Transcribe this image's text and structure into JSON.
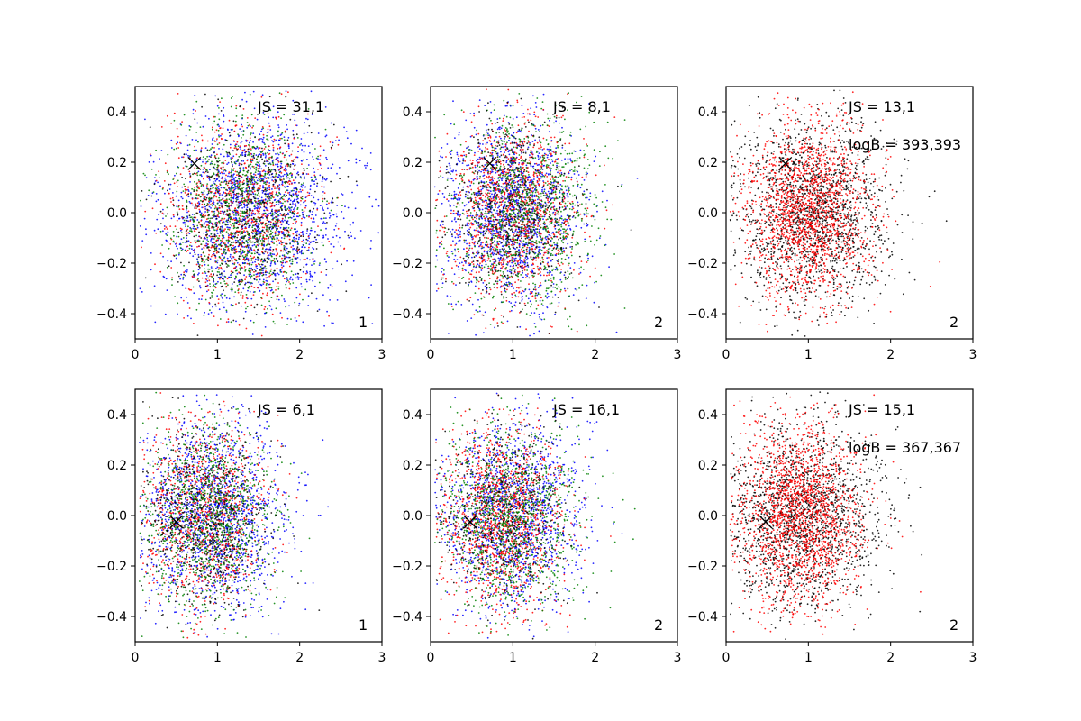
{
  "figure": {
    "background": "#ffffff",
    "layout": "2 rows x 3 columns of scatter panels"
  },
  "chart_data": [
    {
      "type": "scatter",
      "row": 0,
      "col": 0,
      "xlim": [
        0,
        3
      ],
      "ylim": [
        -0.5,
        0.5
      ],
      "xticks": [
        "0",
        "1",
        "2",
        "3"
      ],
      "yticks": [
        "0.4",
        "0.2",
        "0.0",
        "−0.2",
        "−0.4"
      ],
      "annotations": [
        "JS = 31,1"
      ],
      "corner_label": "1",
      "marker_x": {
        "x": 0.72,
        "y": 0.195,
        "color": "#000000"
      },
      "series": [
        {
          "color": "#0000ff",
          "n": 1700,
          "center": [
            1.45,
            0.0
          ],
          "spread": [
            0.55,
            0.19
          ]
        },
        {
          "color": "#ff0000",
          "n": 1000,
          "center": [
            1.3,
            0.0
          ],
          "spread": [
            0.45,
            0.18
          ]
        },
        {
          "color": "#008000",
          "n": 1000,
          "center": [
            1.3,
            0.0
          ],
          "spread": [
            0.42,
            0.18
          ]
        },
        {
          "color": "#000000",
          "n": 500,
          "center": [
            1.35,
            0.0
          ],
          "spread": [
            0.45,
            0.18
          ]
        }
      ]
    },
    {
      "type": "scatter",
      "row": 0,
      "col": 1,
      "xlim": [
        0,
        3
      ],
      "ylim": [
        -0.5,
        0.5
      ],
      "xticks": [
        "0",
        "1",
        "2",
        "3"
      ],
      "yticks": [
        "0.4",
        "0.2",
        "0.0",
        "−0.2",
        "−0.4"
      ],
      "annotations": [
        "JS = 8,1"
      ],
      "corner_label": "2",
      "marker_x": {
        "x": 0.72,
        "y": 0.195,
        "color": "#000000"
      },
      "series": [
        {
          "color": "#0000ff",
          "n": 1500,
          "center": [
            1.0,
            0.0
          ],
          "spread": [
            0.4,
            0.18
          ]
        },
        {
          "color": "#ff0000",
          "n": 1200,
          "center": [
            1.0,
            0.0
          ],
          "spread": [
            0.38,
            0.18
          ]
        },
        {
          "color": "#008000",
          "n": 1100,
          "center": [
            1.15,
            0.0
          ],
          "spread": [
            0.42,
            0.18
          ]
        },
        {
          "color": "#000000",
          "n": 500,
          "center": [
            1.0,
            0.0
          ],
          "spread": [
            0.38,
            0.18
          ]
        }
      ]
    },
    {
      "type": "scatter",
      "row": 0,
      "col": 2,
      "xlim": [
        0,
        3
      ],
      "ylim": [
        -0.5,
        0.5
      ],
      "xticks": [
        "0",
        "1",
        "2",
        "3"
      ],
      "yticks": [
        "0.4",
        "0.2",
        "0.0",
        "−0.2",
        "−0.4"
      ],
      "annotations": [
        "JS = 13,1",
        "logB = 393,393"
      ],
      "corner_label": "2",
      "marker_x": {
        "x": 0.72,
        "y": 0.195,
        "color": "#000000"
      },
      "series": [
        {
          "color": "#000000",
          "n": 1700,
          "center": [
            1.05,
            0.0
          ],
          "spread": [
            0.45,
            0.18
          ]
        },
        {
          "color": "#ff0000",
          "n": 1700,
          "center": [
            1.0,
            0.0
          ],
          "spread": [
            0.38,
            0.18
          ]
        }
      ]
    },
    {
      "type": "scatter",
      "row": 1,
      "col": 0,
      "xlim": [
        0,
        3
      ],
      "ylim": [
        -0.5,
        0.5
      ],
      "xticks": [
        "0",
        "1",
        "2",
        "3"
      ],
      "yticks": [
        "0.4",
        "0.2",
        "0.0",
        "−0.2",
        "−0.4"
      ],
      "annotations": [
        "JS = 6,1"
      ],
      "corner_label": "1",
      "marker_x": {
        "x": 0.5,
        "y": -0.025,
        "color": "#000000"
      },
      "series": [
        {
          "color": "#0000ff",
          "n": 1500,
          "center": [
            0.95,
            0.0
          ],
          "spread": [
            0.42,
            0.18
          ]
        },
        {
          "color": "#ff0000",
          "n": 1000,
          "center": [
            0.85,
            0.0
          ],
          "spread": [
            0.38,
            0.18
          ]
        },
        {
          "color": "#008000",
          "n": 1100,
          "center": [
            0.9,
            0.0
          ],
          "spread": [
            0.38,
            0.18
          ]
        },
        {
          "color": "#000000",
          "n": 600,
          "center": [
            0.85,
            0.0
          ],
          "spread": [
            0.36,
            0.18
          ]
        }
      ]
    },
    {
      "type": "scatter",
      "row": 1,
      "col": 1,
      "xlim": [
        0,
        3
      ],
      "ylim": [
        -0.5,
        0.5
      ],
      "xticks": [
        "0",
        "1",
        "2",
        "3"
      ],
      "yticks": [
        "0.4",
        "0.2",
        "0.0",
        "−0.2",
        "−0.4"
      ],
      "annotations": [
        "JS = 16,1"
      ],
      "corner_label": "2",
      "marker_x": {
        "x": 0.48,
        "y": -0.025,
        "color": "#000000"
      },
      "series": [
        {
          "color": "#0000ff",
          "n": 1400,
          "center": [
            1.0,
            0.0
          ],
          "spread": [
            0.42,
            0.18
          ]
        },
        {
          "color": "#ff0000",
          "n": 1300,
          "center": [
            0.85,
            0.0
          ],
          "spread": [
            0.36,
            0.18
          ]
        },
        {
          "color": "#008000",
          "n": 1100,
          "center": [
            1.0,
            0.0
          ],
          "spread": [
            0.4,
            0.18
          ]
        },
        {
          "color": "#000000",
          "n": 500,
          "center": [
            0.9,
            0.0
          ],
          "spread": [
            0.36,
            0.18
          ]
        }
      ]
    },
    {
      "type": "scatter",
      "row": 1,
      "col": 2,
      "xlim": [
        0,
        3
      ],
      "ylim": [
        -0.5,
        0.5
      ],
      "xticks": [
        "0",
        "1",
        "2",
        "3"
      ],
      "yticks": [
        "0.4",
        "0.2",
        "0.0",
        "−0.2",
        "−0.4"
      ],
      "annotations": [
        "JS = 15,1",
        "logB = 367,367"
      ],
      "corner_label": "2",
      "marker_x": {
        "x": 0.48,
        "y": -0.025,
        "color": "#000000"
      },
      "series": [
        {
          "color": "#000000",
          "n": 1700,
          "center": [
            0.95,
            0.0
          ],
          "spread": [
            0.45,
            0.18
          ]
        },
        {
          "color": "#ff0000",
          "n": 1800,
          "center": [
            0.9,
            0.0
          ],
          "spread": [
            0.36,
            0.18
          ]
        }
      ]
    }
  ]
}
